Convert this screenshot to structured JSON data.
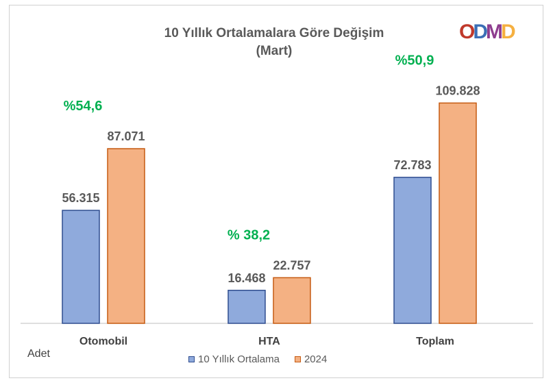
{
  "title_line1": "10 Yıllık Ortalamalara  Göre Değişim",
  "title_line2": "(Mart)",
  "unit_label": "Adet",
  "logo": {
    "letters": [
      "O",
      "D",
      "M",
      "D"
    ],
    "colors": [
      "#c0392b",
      "#3b6fb6",
      "#8e3d8f",
      "#f5b041"
    ]
  },
  "colors": {
    "series1_fill": "#8faadc",
    "series1_stroke": "#2f4d8f",
    "series2_fill": "#f4b183",
    "series2_stroke": "#c55a11",
    "pct_text": "#00b050",
    "value_text": "#595959"
  },
  "chart_data": {
    "type": "bar",
    "categories": [
      "Otomobil",
      "HTA",
      "Toplam"
    ],
    "series": [
      {
        "name": "10 Yıllık Ortalama",
        "values": [
          56315,
          16468,
          72783
        ],
        "labels": [
          "56.315",
          "16.468",
          "72.783"
        ]
      },
      {
        "name": "2024",
        "values": [
          87071,
          22757,
          109828
        ],
        "labels": [
          "87.071",
          "22.757",
          "109.828"
        ]
      }
    ],
    "change_labels": [
      "%54,6",
      "% 38,2",
      "%50,9"
    ],
    "title": "10 Yıllık Ortalamalara  Göre Değişim (Mart)",
    "ylabel": "Adet",
    "ylim": [
      0,
      140000
    ],
    "grid": false,
    "legend": "bottom"
  }
}
